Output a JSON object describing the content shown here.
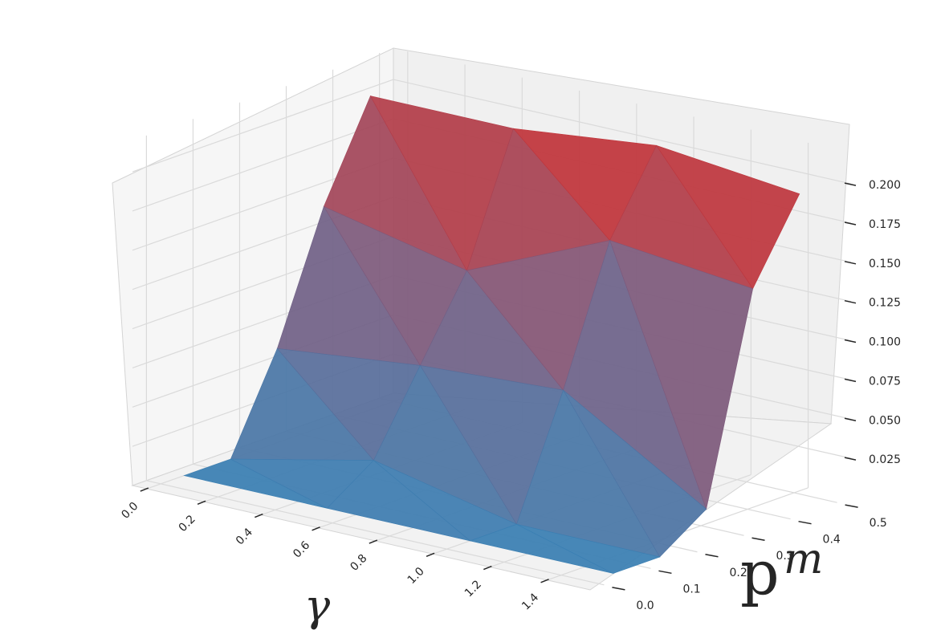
{
  "chart_data": {
    "type": "surface3d",
    "title": "",
    "xlabel": "γ",
    "ylabel": "p",
    "ylabel_subscript": "m",
    "zlabel": "",
    "x_ticks": [
      "0.0",
      "0.2",
      "0.4",
      "0.6",
      "0.8",
      "1.0",
      "1.2",
      "1.4"
    ],
    "y_ticks": [
      "0.0",
      "0.1",
      "0.2",
      "0.3",
      "0.4",
      "0.5"
    ],
    "z_ticks": [
      "0.025",
      "0.050",
      "0.075",
      "0.100",
      "0.125",
      "0.150",
      "0.175",
      "0.200"
    ],
    "xlim": [
      -0.05,
      1.55
    ],
    "ylim": [
      -0.03,
      0.53
    ],
    "zlim": [
      0.0,
      0.22
    ],
    "grid": true,
    "colormap": {
      "low": "#3a7fb3",
      "mid": "#7a5c80",
      "high": "#d22c2b"
    },
    "points": [
      {
        "x": 0.0,
        "y": 0.05,
        "z": 0.0
      },
      {
        "x": 0.0,
        "y": 0.15,
        "z": 0.0
      },
      {
        "x": 0.0,
        "y": 0.25,
        "z": 0.06
      },
      {
        "x": 0.0,
        "y": 0.35,
        "z": 0.14
      },
      {
        "x": 0.0,
        "y": 0.45,
        "z": 0.2
      },
      {
        "x": 0.5,
        "y": 0.05,
        "z": 0.0
      },
      {
        "x": 0.5,
        "y": 0.15,
        "z": 0.02
      },
      {
        "x": 0.5,
        "y": 0.25,
        "z": 0.07
      },
      {
        "x": 0.5,
        "y": 0.35,
        "z": 0.12
      },
      {
        "x": 0.5,
        "y": 0.45,
        "z": 0.2
      },
      {
        "x": 1.0,
        "y": 0.05,
        "z": 0.0
      },
      {
        "x": 1.0,
        "y": 0.15,
        "z": 0.0
      },
      {
        "x": 1.0,
        "y": 0.25,
        "z": 0.075
      },
      {
        "x": 1.0,
        "y": 0.35,
        "z": 0.16
      },
      {
        "x": 1.0,
        "y": 0.45,
        "z": 0.21
      },
      {
        "x": 1.5,
        "y": 0.05,
        "z": 0.0
      },
      {
        "x": 1.5,
        "y": 0.15,
        "z": 0.0
      },
      {
        "x": 1.5,
        "y": 0.25,
        "z": 0.02
      },
      {
        "x": 1.5,
        "y": 0.35,
        "z": 0.15
      },
      {
        "x": 1.5,
        "y": 0.45,
        "z": 0.2
      }
    ],
    "triangles": [
      [
        0,
        1,
        5
      ],
      [
        1,
        6,
        5
      ],
      [
        1,
        2,
        6
      ],
      [
        2,
        7,
        6
      ],
      [
        2,
        3,
        7
      ],
      [
        3,
        8,
        7
      ],
      [
        3,
        4,
        8
      ],
      [
        4,
        9,
        8
      ],
      [
        5,
        6,
        10
      ],
      [
        6,
        11,
        10
      ],
      [
        6,
        7,
        11
      ],
      [
        7,
        12,
        11
      ],
      [
        7,
        8,
        12
      ],
      [
        8,
        13,
        12
      ],
      [
        8,
        9,
        13
      ],
      [
        9,
        14,
        13
      ],
      [
        10,
        11,
        15
      ],
      [
        11,
        16,
        15
      ],
      [
        11,
        12,
        16
      ],
      [
        12,
        17,
        16
      ],
      [
        12,
        13,
        17
      ],
      [
        13,
        18,
        17
      ],
      [
        13,
        14,
        18
      ],
      [
        14,
        19,
        18
      ]
    ]
  }
}
